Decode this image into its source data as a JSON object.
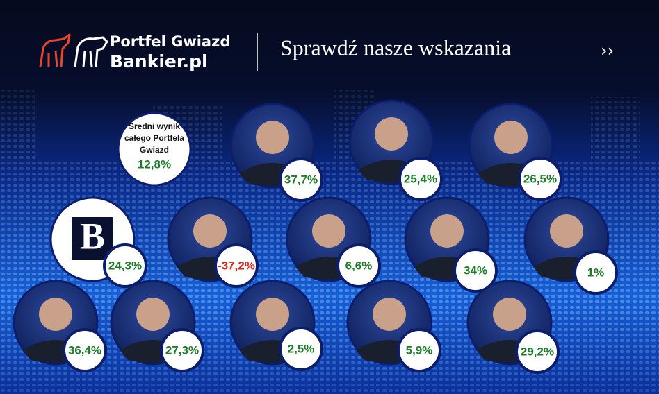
{
  "header": {
    "logo_line1": "Portfel Gwiazd",
    "logo_line2": "Bankier.pl",
    "tagline": "Sprawdź nasze wskazania",
    "cta_arrow": "››"
  },
  "summary": {
    "lines": [
      "Średni wynik",
      "całego Portfela",
      "Gwiazd"
    ],
    "value": "12,8%",
    "color": "#1e7b2a"
  },
  "items": [
    {
      "value": "37,7%",
      "color": "#1e7b2a"
    },
    {
      "value": "25,4%",
      "color": "#1e7b2a"
    },
    {
      "value": "26,5%",
      "color": "#1e7b2a"
    },
    {
      "logo": "B",
      "value": "24,3%",
      "color": "#1e7b2a"
    },
    {
      "value": "-37,2%",
      "color": "#d9261c"
    },
    {
      "value": "6,6%",
      "color": "#1e7b2a"
    },
    {
      "value": "34%",
      "color": "#1e7b2a"
    },
    {
      "value": "1%",
      "color": "#1e7b2a"
    },
    {
      "value": "36,4%",
      "color": "#1e7b2a"
    },
    {
      "value": "27,3%",
      "color": "#1e7b2a"
    },
    {
      "value": "2,5%",
      "color": "#1e7b2a"
    },
    {
      "value": "5,9%",
      "color": "#1e7b2a"
    },
    {
      "value": "29,2%",
      "color": "#1e7b2a"
    }
  ]
}
